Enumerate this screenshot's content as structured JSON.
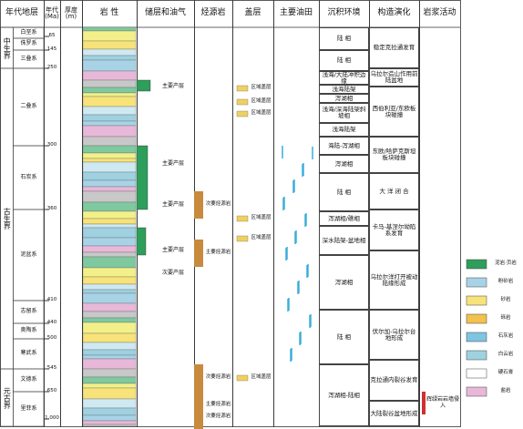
{
  "header": {
    "columns": [
      "年代地层",
      "年代 (Ma)",
      "厚度 (m)",
      "岩 性",
      "储层和油气",
      "烃源岩",
      "盖层",
      "主要油田",
      "沉积环境",
      "构造演化",
      "岩浆活动"
    ]
  },
  "erathems": [
    "中生界",
    "古生界",
    "元古界"
  ],
  "systems": [
    "白垩系",
    "侏罗系",
    "三叠系",
    "二叠系",
    "石炭系",
    "泥盆系",
    "志留系",
    "奥陶系",
    "寒武系",
    "文德系",
    "里菲系"
  ],
  "ages": [
    "65",
    "145",
    "250",
    "300",
    "360",
    "410",
    "440",
    "500",
    "545",
    "650",
    "1,000"
  ],
  "reservoirs": [
    "主要产层",
    "主要产层",
    "主要产层",
    "主要产层",
    "次要产层"
  ],
  "source_rocks": [
    "次要烃源岩",
    "主要烃源岩",
    "次要烃源岩",
    "主要烃源岩",
    "次要烃源岩"
  ],
  "cap_rocks": [
    "区域盖层",
    "区域盖层",
    "区域盖层",
    "区域盖层",
    "区域盖层",
    "区域盖层"
  ],
  "environments": [
    "陆 相",
    "陆 相",
    "浅海/大陆冲积边缘",
    "浅海陆架",
    "泻湖相",
    "浅海/深海陆架斜坡相",
    "浅海陆架",
    "海陆-泻湖相",
    "泻湖相",
    "陆 相",
    "泻湖相/礁相",
    "深水陆架-盆地相",
    "泻湖相",
    "陆 相",
    "泻湖相-陆相"
  ],
  "tectonics": [
    "稳定克拉通发育",
    "乌拉尔造山作用前陆盆地",
    "西伯利亚/东欧板块碰撞",
    "东欧/哈萨克斯坦板块碰撞",
    "大 洋 闭 合",
    "卡马-基涅尔坳陷系发育",
    "乌拉尔洋打开被动陆缘形成",
    "伏尔加-乌拉尔台地形成",
    "克拉通内裂谷发育",
    "大陆裂谷盆地形成"
  ],
  "magmatism": [
    "辉绿岩岩墙侵入"
  ],
  "legend": [
    "泥岩·页岩",
    "粉砂岩",
    "砂岩",
    "砾岩",
    "石灰岩",
    "白云岩",
    "硬石膏",
    "盐岩"
  ]
}
